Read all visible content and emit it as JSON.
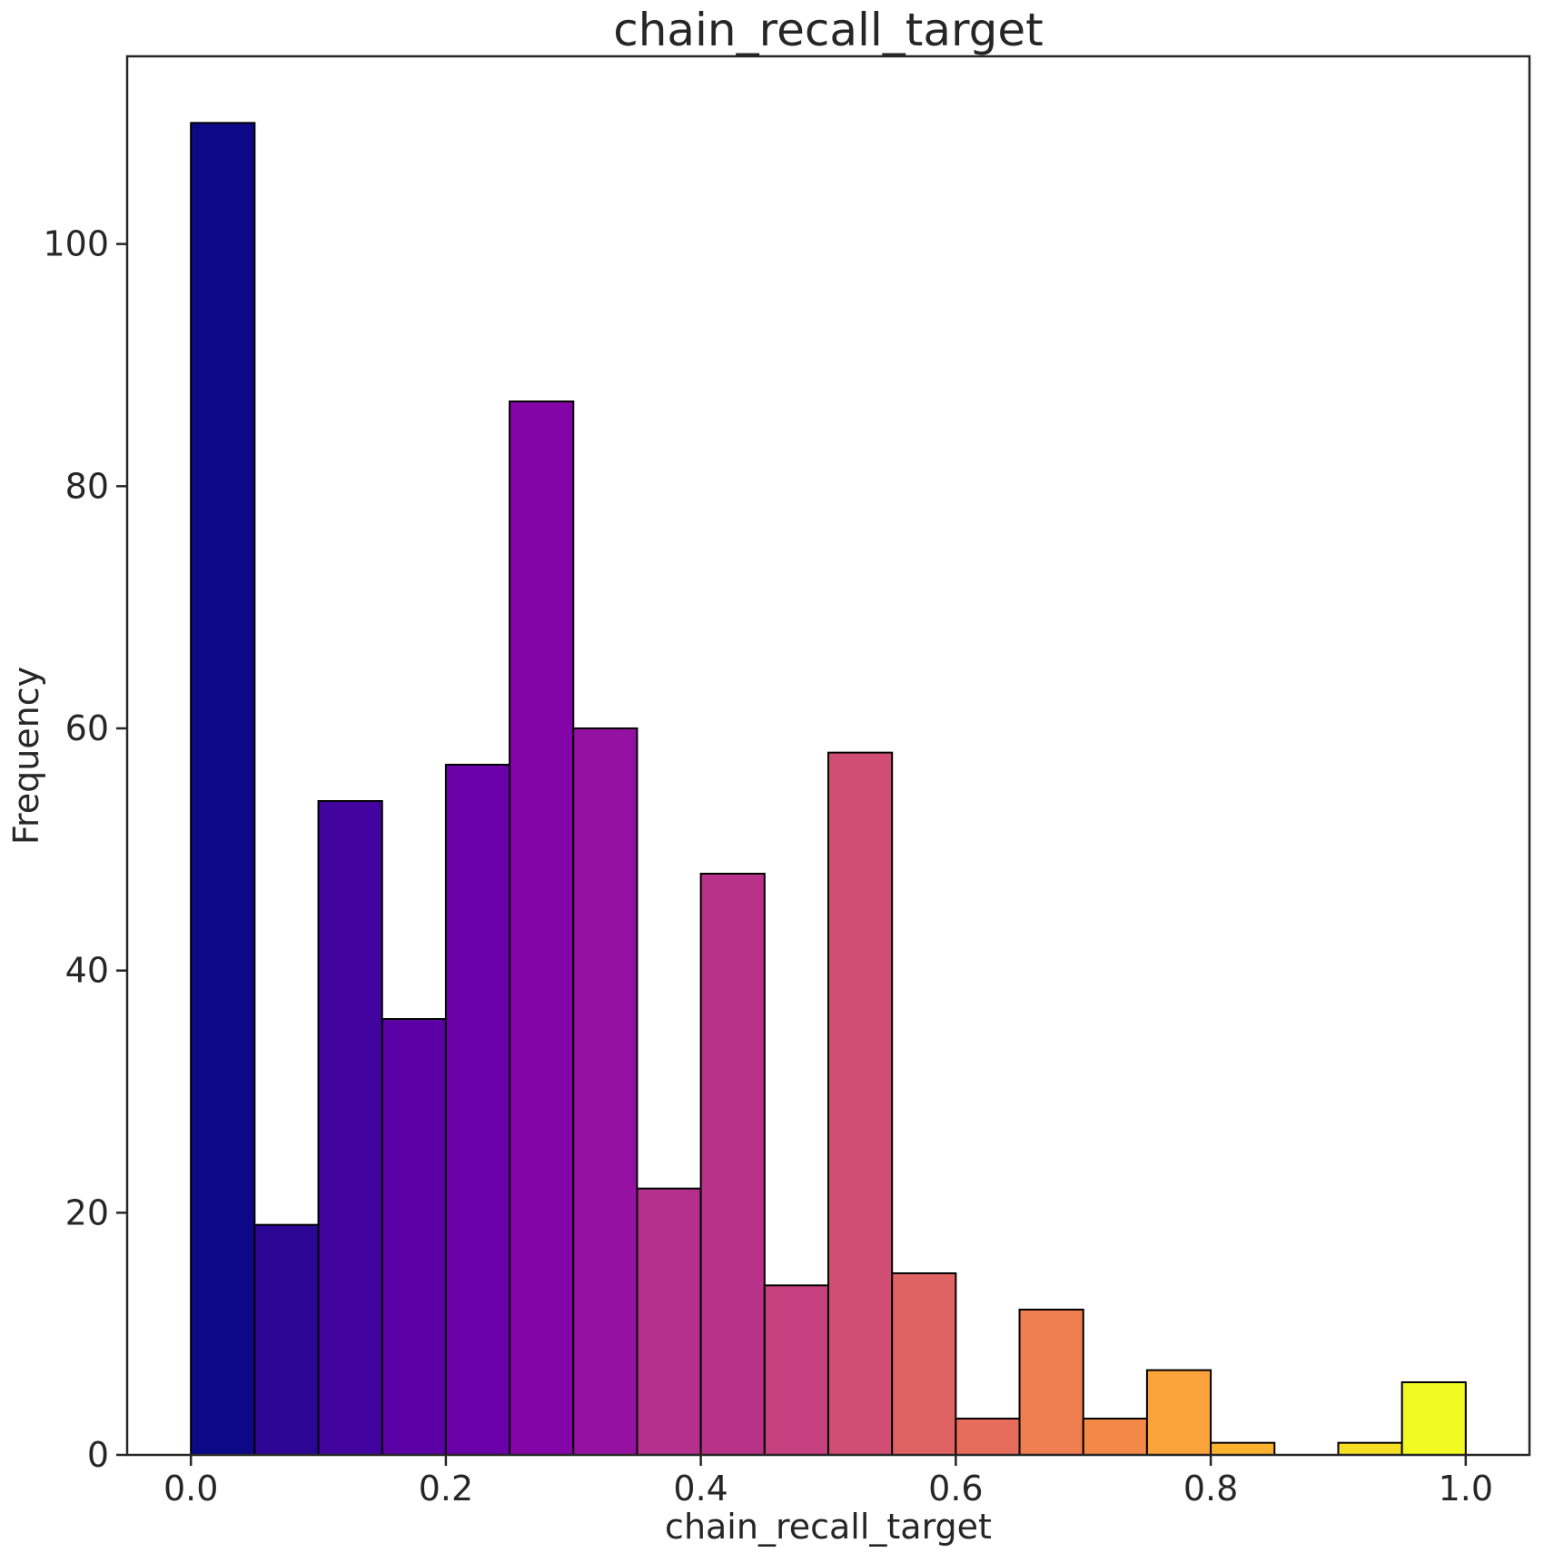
{
  "chart_data": {
    "type": "bar",
    "title": "chain_recall_target",
    "xlabel": "chain_recall_target",
    "ylabel": "Frequency",
    "xlim": [
      -0.05,
      1.05
    ],
    "ylim": [
      0,
      115.5
    ],
    "xticks": [
      0.0,
      0.2,
      0.4,
      0.6,
      0.8,
      1.0
    ],
    "xtick_labels": [
      "0.0",
      "0.2",
      "0.4",
      "0.6",
      "0.8",
      "1.0"
    ],
    "yticks": [
      0,
      20,
      40,
      60,
      80,
      100
    ],
    "ytick_labels": [
      "0",
      "20",
      "40",
      "60",
      "80",
      "100"
    ],
    "grid": false,
    "bin_edges": [
      0.0,
      0.05,
      0.1,
      0.15,
      0.2,
      0.25,
      0.3,
      0.35,
      0.4,
      0.45,
      0.5,
      0.55,
      0.6,
      0.65,
      0.7,
      0.75,
      0.8,
      0.85,
      0.9,
      0.95,
      1.0
    ],
    "values": [
      110,
      19,
      54,
      36,
      57,
      87,
      60,
      22,
      48,
      14,
      58,
      15,
      3,
      12,
      3,
      7,
      1,
      0,
      1,
      6
    ],
    "colors": [
      "#0d0887",
      "#2c0594",
      "#43039e",
      "#5b01a5",
      "#6a00a8",
      "#8305a7",
      "#9511a1",
      "#b52f8c",
      "#b83289",
      "#c5407e",
      "#d04d73",
      "#e06363",
      "#e66c5c",
      "#ef7e50",
      "#f48849",
      "#f9a33a",
      "#fbb32f",
      "#fcc328",
      "#f4de24",
      "#f0f921"
    ]
  }
}
